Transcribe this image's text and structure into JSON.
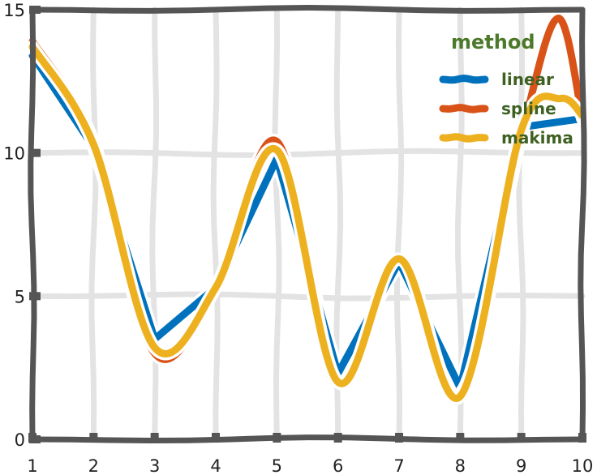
{
  "chart_data": {
    "type": "line",
    "x": [
      1,
      2,
      3,
      4,
      5,
      6,
      7,
      8,
      9,
      10
    ],
    "xlim": [
      1,
      10
    ],
    "ylim": [
      0,
      15
    ],
    "xticks": [
      "1",
      "2",
      "3",
      "4",
      "5",
      "6",
      "7",
      "8",
      "9",
      "10"
    ],
    "yticks": [
      "0",
      "5",
      "10",
      "15"
    ],
    "grid": true,
    "legend": {
      "title": "method",
      "position": "top-right",
      "entries": [
        {
          "name": "linear",
          "color": "#0072BD"
        },
        {
          "name": "spline",
          "color": "#D95319"
        },
        {
          "name": "makima",
          "color": "#EDB120"
        }
      ]
    },
    "series": [
      {
        "name": "linear",
        "color": "#0072BD",
        "interp": "linear",
        "values": [
          13.4,
          10.2,
          3.5,
          5.3,
          9.8,
          2.3,
          6.2,
          1.8,
          10.9,
          11.2
        ]
      },
      {
        "name": "spline",
        "color": "#D95319",
        "interp": "smooth",
        "style": "peak-overshoot",
        "values": [
          13.9,
          10.4,
          3.0,
          5.3,
          10.4,
          2.0,
          6.3,
          1.6,
          10.6,
          11.2
        ]
      },
      {
        "name": "makima",
        "color": "#EDB120",
        "interp": "smooth",
        "values": [
          13.7,
          10.3,
          3.2,
          5.3,
          10.1,
          2.0,
          6.3,
          1.5,
          10.8,
          11.3
        ]
      }
    ]
  }
}
